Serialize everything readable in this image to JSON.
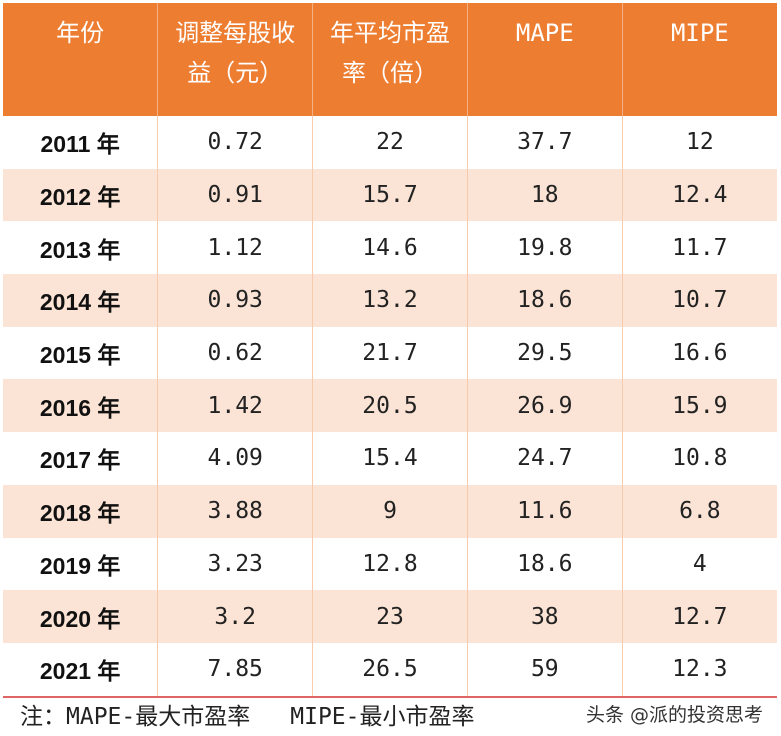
{
  "table": {
    "headers": [
      "年份",
      "调整每股收益（元）",
      "年平均市盈率（倍）",
      "MAPE",
      "MIPE"
    ],
    "rows": [
      [
        "2011 年",
        "0.72",
        "22",
        "37.7",
        "12"
      ],
      [
        "2012 年",
        "0.91",
        "15.7",
        "18",
        "12.4"
      ],
      [
        "2013 年",
        "1.12",
        "14.6",
        "19.8",
        "11.7"
      ],
      [
        "2014 年",
        "0.93",
        "13.2",
        "18.6",
        "10.7"
      ],
      [
        "2015 年",
        "0.62",
        "21.7",
        "29.5",
        "16.6"
      ],
      [
        "2016 年",
        "1.42",
        "20.5",
        "26.9",
        "15.9"
      ],
      [
        "2017 年",
        "4.09",
        "15.4",
        "24.7",
        "10.8"
      ],
      [
        "2018 年",
        "3.88",
        "9",
        "11.6",
        "6.8"
      ],
      [
        "2019 年",
        "3.23",
        "12.8",
        "18.6",
        "4"
      ],
      [
        "2020 年",
        "3.2",
        "23",
        "38",
        "12.7"
      ],
      [
        "2021 年",
        "7.85",
        "26.5",
        "59",
        "12.3"
      ]
    ]
  },
  "note": {
    "mape": "注：MAPE-最大市盈率",
    "mipe": "MIPE-最小市盈率"
  },
  "watermark": "头条 @派的投资思考",
  "colors": {
    "header": "#ED7D31",
    "alt_row": "#FBE4D5"
  }
}
